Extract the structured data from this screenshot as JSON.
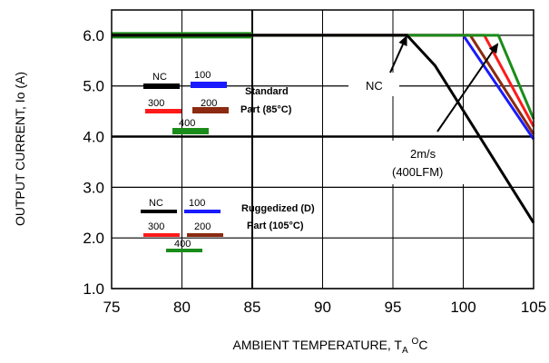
{
  "chart_data": {
    "type": "line",
    "xlabel_main": "AMBIENT TEMPERATURE, T",
    "xlabel_sub": "A",
    "xlabel_sup": "O",
    "xlabel_unit": "C",
    "ylabel": "OUTPUT CURRENT, Io (A)",
    "xlim": [
      75,
      105
    ],
    "ylim": [
      1.0,
      6.5
    ],
    "x_ticks": [
      "75",
      "80",
      "85",
      "90",
      "95",
      "100",
      "105"
    ],
    "y_ticks": [
      "1.0",
      "2.0",
      "3.0",
      "4.0",
      "5.0",
      "6.0"
    ],
    "series": [
      {
        "name": "NC",
        "color": "#000000",
        "x": [
          75,
          96,
          98,
          105
        ],
        "y": [
          6.0,
          6.0,
          5.4,
          2.3
        ]
      },
      {
        "name": "100",
        "color": "#1a1aff",
        "x": [
          75,
          100,
          105
        ],
        "y": [
          6.0,
          6.0,
          3.95
        ]
      },
      {
        "name": "200",
        "color": "#8b2a10",
        "x": [
          75,
          100.5,
          105
        ],
        "y": [
          6.0,
          6.0,
          4.05
        ]
      },
      {
        "name": "300",
        "color": "#ff1a1a",
        "x": [
          75,
          101.5,
          105
        ],
        "y": [
          6.0,
          6.0,
          4.2
        ]
      },
      {
        "name": "400",
        "color": "#1a8c1a",
        "x": [
          75,
          102.5,
          105
        ],
        "y": [
          6.0,
          6.0,
          4.35
        ]
      }
    ],
    "legends": [
      {
        "title_line1": "Standard",
        "title_line2": "Part (85°C)",
        "items": [
          {
            "label": "NC",
            "color": "#000000"
          },
          {
            "label": "100",
            "color": "#1a1aff"
          },
          {
            "label": "300",
            "color": "#ff1a1a"
          },
          {
            "label": "200",
            "color": "#8b2a10"
          },
          {
            "label": "400",
            "color": "#1a8c1a"
          }
        ]
      },
      {
        "title_line1": "Ruggedized (D)",
        "title_line2": "Part (105°C)",
        "items": [
          {
            "label": "NC",
            "color": "#000000"
          },
          {
            "label": "100",
            "color": "#1a1aff"
          },
          {
            "label": "300",
            "color": "#ff1a1a"
          },
          {
            "label": "200",
            "color": "#8b2a10"
          },
          {
            "label": "400",
            "color": "#1a8c1a"
          }
        ]
      }
    ],
    "annotations": [
      {
        "text": "NC",
        "points_to": [
          96,
          6.0
        ]
      },
      {
        "text_line1": "2m/s",
        "text_line2": "(400LFM)",
        "points_to": [
          102.5,
          5.85
        ]
      }
    ],
    "highlight_segment": {
      "x": [
        75,
        85
      ],
      "y": [
        6.0,
        6.0
      ],
      "color": "#1a8c1a"
    },
    "grid": true
  }
}
